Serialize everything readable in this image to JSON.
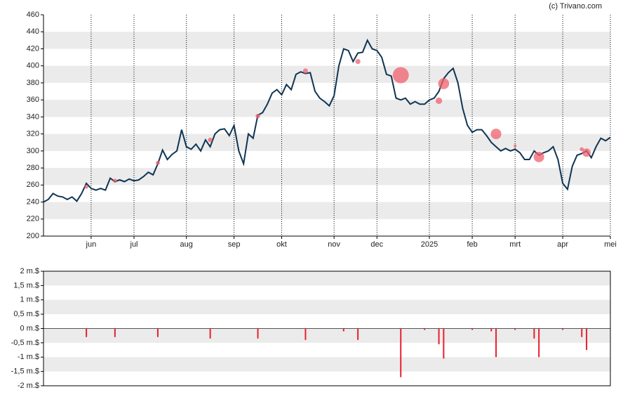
{
  "chart_data": [
    {
      "type": "line",
      "source": "(c) Trivano.com",
      "categories": [
        null,
        null,
        null,
        null,
        null,
        null,
        null,
        null,
        null,
        null,
        "jun",
        null,
        null,
        null,
        null,
        null,
        null,
        null,
        null,
        "jul",
        null,
        null,
        null,
        null,
        null,
        null,
        null,
        null,
        null,
        null,
        "aug",
        null,
        null,
        null,
        null,
        null,
        null,
        null,
        null,
        null,
        "sep",
        null,
        null,
        null,
        null,
        null,
        null,
        null,
        null,
        null,
        "okt",
        null,
        null,
        null,
        null,
        null,
        null,
        null,
        null,
        null,
        null,
        "nov",
        null,
        null,
        null,
        null,
        null,
        null,
        null,
        null,
        "dec",
        null,
        null,
        null,
        null,
        null,
        null,
        null,
        null,
        null,
        null,
        "2025",
        null,
        null,
        null,
        null,
        null,
        null,
        null,
        null,
        "feb",
        null,
        null,
        null,
        null,
        null,
        null,
        null,
        null,
        "mrt",
        null,
        null,
        null,
        null,
        null,
        null,
        null,
        null,
        null,
        "apr",
        null,
        null,
        null,
        null,
        null,
        null,
        null,
        null,
        null,
        "mei"
      ],
      "series": [
        {
          "color": "#0f3554",
          "values": [
            240,
            243,
            250,
            247,
            246,
            243,
            246,
            241,
            250,
            262,
            256,
            254,
            256,
            254,
            268,
            264,
            266,
            264,
            267,
            265,
            266,
            270,
            275,
            272,
            285,
            301,
            290,
            296,
            300,
            325,
            305,
            302,
            308,
            300,
            313,
            305,
            320,
            325,
            326,
            318,
            330,
            300,
            285,
            320,
            315,
            342,
            345,
            355,
            368,
            372,
            366,
            378,
            372,
            390,
            393,
            391,
            392,
            370,
            362,
            358,
            353,
            365,
            400,
            420,
            418,
            405,
            415,
            416,
            430,
            420,
            418,
            410,
            390,
            388,
            362,
            360,
            362,
            355,
            358,
            355,
            355,
            360,
            362,
            370,
            385,
            392,
            397,
            380,
            350,
            330,
            322,
            325,
            325,
            318,
            310,
            305,
            300,
            303,
            300,
            302,
            298,
            290,
            290,
            300,
            295,
            298,
            300,
            305,
            290,
            262,
            255,
            282,
            295,
            297,
            300,
            292,
            305,
            315,
            312,
            316
          ]
        }
      ],
      "bubbles": {
        "color": "#f0606e",
        "values": [
          null,
          null,
          null,
          null,
          null,
          null,
          null,
          null,
          null,
          258,
          null,
          null,
          null,
          null,
          null,
          265,
          null,
          null,
          null,
          null,
          null,
          null,
          null,
          null,
          286,
          null,
          null,
          null,
          null,
          null,
          null,
          null,
          null,
          null,
          null,
          313,
          null,
          null,
          null,
          null,
          null,
          null,
          null,
          null,
          null,
          341,
          null,
          null,
          null,
          null,
          null,
          null,
          null,
          null,
          null,
          394,
          null,
          null,
          null,
          null,
          null,
          null,
          null,
          null,
          null,
          null,
          405,
          null,
          null,
          null,
          null,
          null,
          null,
          null,
          null,
          389,
          null,
          null,
          null,
          null,
          null,
          null,
          null,
          359,
          379,
          null,
          null,
          null,
          null,
          null,
          null,
          null,
          null,
          null,
          null,
          320,
          null,
          null,
          null,
          306,
          null,
          null,
          null,
          null,
          293,
          null,
          null,
          null,
          null,
          null,
          null,
          null,
          null,
          302,
          298,
          null,
          null,
          null,
          null,
          null
        ]
      },
      "ylim": [
        200,
        460
      ],
      "yticks": [
        200,
        220,
        240,
        260,
        280,
        300,
        320,
        340,
        360,
        380,
        400,
        420,
        440,
        460
      ],
      "grid": true
    },
    {
      "type": "bar",
      "color": "#e8202e",
      "values": [
        null,
        null,
        null,
        null,
        null,
        null,
        null,
        null,
        null,
        -0.3,
        null,
        null,
        null,
        null,
        null,
        -0.3,
        null,
        null,
        null,
        null,
        null,
        null,
        null,
        null,
        -0.3,
        null,
        null,
        null,
        null,
        null,
        null,
        null,
        null,
        null,
        null,
        -0.35,
        null,
        null,
        null,
        null,
        null,
        null,
        null,
        null,
        null,
        -0.35,
        null,
        null,
        null,
        null,
        null,
        null,
        null,
        null,
        null,
        -0.4,
        null,
        null,
        null,
        null,
        null,
        null,
        null,
        -0.1,
        null,
        null,
        -0.4,
        null,
        null,
        null,
        null,
        null,
        null,
        null,
        null,
        -1.7,
        null,
        null,
        null,
        null,
        -0.05,
        null,
        null,
        -0.55,
        -1.05,
        null,
        null,
        null,
        null,
        null,
        -0.05,
        null,
        null,
        null,
        -0.1,
        -1.0,
        null,
        null,
        null,
        -0.05,
        null,
        null,
        null,
        -0.35,
        -1.0,
        null,
        null,
        null,
        null,
        -0.05,
        null,
        null,
        null,
        -0.3,
        -0.75,
        null,
        null,
        null,
        null,
        null
      ],
      "ylim": [
        -2,
        2
      ],
      "yticks": [
        {
          "value": -2,
          "label": "-2 m.$"
        },
        {
          "value": -1.5,
          "label": "-1,5 m.$"
        },
        {
          "value": -1,
          "label": "-1 m.$"
        },
        {
          "value": -0.5,
          "label": "-0,5 m.$"
        },
        {
          "value": 0,
          "label": "0 m.$"
        },
        {
          "value": 0.5,
          "label": "0,5 m.$"
        },
        {
          "value": 1,
          "label": "1 m.$"
        },
        {
          "value": 1.5,
          "label": "1,5 m.$"
        },
        {
          "value": 2,
          "label": "2 m.$"
        }
      ],
      "grid": true
    }
  ]
}
